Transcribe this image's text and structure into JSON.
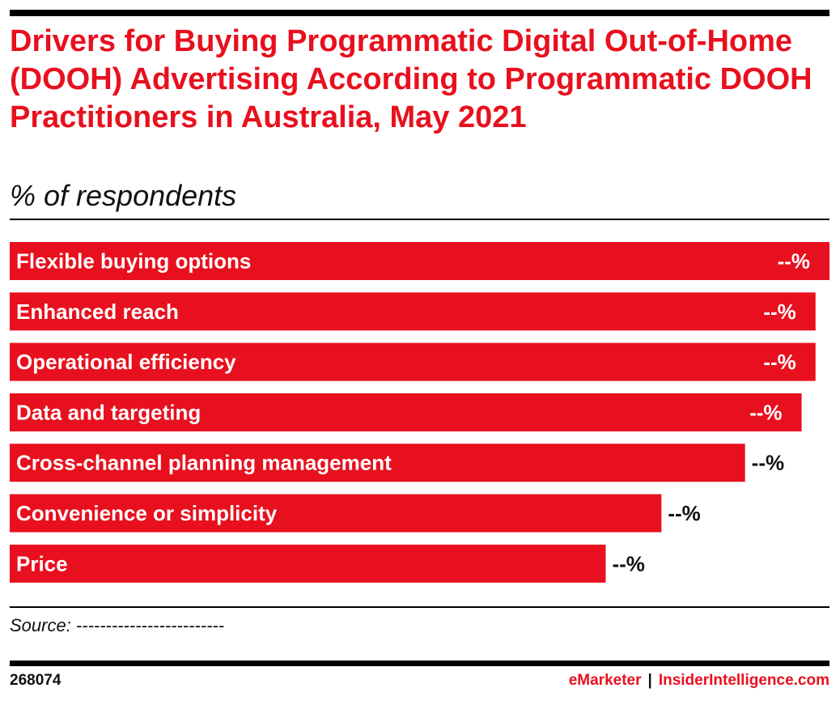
{
  "header": {
    "title": "Drivers for Buying Programmatic Digital Out-of-Home (DOOH) Advertising According to Programmatic DOOH Practitioners in Australia, May 2021",
    "subtitle": "% of respondents"
  },
  "chart_data": {
    "type": "bar",
    "orientation": "horizontal",
    "categories": [
      "Flexible buying options",
      "Enhanced reach",
      "Operational efficiency",
      "Data and targeting",
      "Cross-channel planning management",
      "Convenience or simplicity",
      "Price"
    ],
    "values": [
      100,
      98.3,
      98.3,
      96.6,
      89.7,
      79.5,
      72.7
    ],
    "value_labels": [
      "--%",
      "--%",
      "--%",
      "--%",
      "--%",
      "--%",
      "--%"
    ],
    "xlim": [
      0,
      100
    ],
    "bar_color": "#e8101e",
    "grid": false
  },
  "footer": {
    "source": "Source: -------------------------",
    "chart_id": "268074",
    "brand_left": "eMarketer",
    "brand_sep": "|",
    "brand_right": "InsiderIntelligence.com"
  }
}
